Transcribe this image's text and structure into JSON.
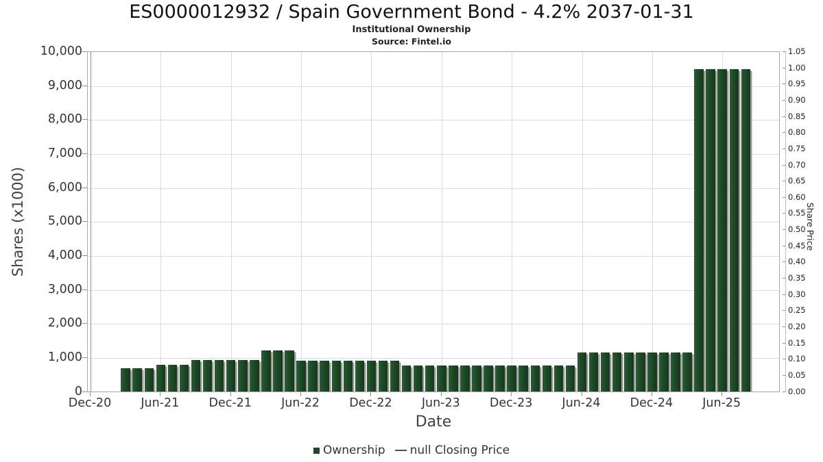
{
  "header": {
    "title": "ES0000012932 / Spain Government Bond - 4.2% 2037-01-31",
    "subtitle": "Institutional Ownership",
    "source": "Source: Fintel.io"
  },
  "colors": {
    "bar_fill": "#1d4a26",
    "bar_fill_light": "#2e5c36",
    "bar_fill_dark": "#16381c",
    "bar_shadow": "#9a9a9a",
    "gridline": "#dcdcdc",
    "plot_border": "#a6a6a6",
    "axis_spine": "#8f8f8f",
    "tick_text": "#333333",
    "right_tick_text": "#1f1f1f",
    "legend_dash": "#4d4d4d"
  },
  "chart_data": {
    "type": "bar",
    "title": "ES0000012932 / Spain Government Bond - 4.2% 2037-01-31",
    "subtitle": "Institutional Ownership",
    "source": "Source: Fintel.io",
    "xlabel": "Date",
    "ylabel_left": "Shares (x1000)",
    "ylabel_right": "Share Price",
    "ylim_left": [
      0,
      10000
    ],
    "ylim_right": [
      0,
      1.05
    ],
    "grid": true,
    "legend_position": "bottom-center",
    "x_ticks": [
      "Dec-20",
      "Jun-21",
      "Dec-21",
      "Jun-22",
      "Dec-22",
      "Jun-23",
      "Dec-23",
      "Jun-24",
      "Dec-24",
      "Jun-25"
    ],
    "y_ticks_left": [
      "0",
      "1,000",
      "2,000",
      "3,000",
      "4,000",
      "5,000",
      "6,000",
      "7,000",
      "8,000",
      "9,000",
      "10,000"
    ],
    "y_ticks_right": [
      "0.00",
      "0.05",
      "0.10",
      "0.15",
      "0.20",
      "0.25",
      "0.30",
      "0.35",
      "0.40",
      "0.45",
      "0.50",
      "0.55",
      "0.60",
      "0.65",
      "0.70",
      "0.75",
      "0.80",
      "0.85",
      "0.90",
      "0.95",
      "1.00",
      "1.05"
    ],
    "series": [
      {
        "name": "Ownership",
        "unit": "shares_x1000",
        "points": [
          {
            "month": "Mar-21",
            "shares": 700
          },
          {
            "month": "Apr-21",
            "shares": 700
          },
          {
            "month": "May-21",
            "shares": 700
          },
          {
            "month": "Jun-21",
            "shares": 800
          },
          {
            "month": "Jul-21",
            "shares": 800
          },
          {
            "month": "Aug-21",
            "shares": 800
          },
          {
            "month": "Sep-21",
            "shares": 940
          },
          {
            "month": "Oct-21",
            "shares": 940
          },
          {
            "month": "Nov-21",
            "shares": 940
          },
          {
            "month": "Dec-21",
            "shares": 940
          },
          {
            "month": "Jan-22",
            "shares": 940
          },
          {
            "month": "Feb-22",
            "shares": 940
          },
          {
            "month": "Mar-22",
            "shares": 1220
          },
          {
            "month": "Apr-22",
            "shares": 1220
          },
          {
            "month": "May-22",
            "shares": 1220
          },
          {
            "month": "Jun-22",
            "shares": 910
          },
          {
            "month": "Jul-22",
            "shares": 910
          },
          {
            "month": "Aug-22",
            "shares": 910
          },
          {
            "month": "Sep-22",
            "shares": 910
          },
          {
            "month": "Oct-22",
            "shares": 910
          },
          {
            "month": "Nov-22",
            "shares": 910
          },
          {
            "month": "Dec-22",
            "shares": 910
          },
          {
            "month": "Jan-23",
            "shares": 910
          },
          {
            "month": "Feb-23",
            "shares": 910
          },
          {
            "month": "Mar-23",
            "shares": 770
          },
          {
            "month": "Apr-23",
            "shares": 770
          },
          {
            "month": "May-23",
            "shares": 770
          },
          {
            "month": "Jun-23",
            "shares": 770
          },
          {
            "month": "Jul-23",
            "shares": 770
          },
          {
            "month": "Aug-23",
            "shares": 770
          },
          {
            "month": "Sep-23",
            "shares": 770
          },
          {
            "month": "Oct-23",
            "shares": 770
          },
          {
            "month": "Nov-23",
            "shares": 770
          },
          {
            "month": "Dec-23",
            "shares": 770
          },
          {
            "month": "Jan-24",
            "shares": 770
          },
          {
            "month": "Feb-24",
            "shares": 770
          },
          {
            "month": "Mar-24",
            "shares": 770
          },
          {
            "month": "Apr-24",
            "shares": 770
          },
          {
            "month": "May-24",
            "shares": 770
          },
          {
            "month": "Jun-24",
            "shares": 1160
          },
          {
            "month": "Jul-24",
            "shares": 1160
          },
          {
            "month": "Aug-24",
            "shares": 1160
          },
          {
            "month": "Sep-24",
            "shares": 1160
          },
          {
            "month": "Oct-24",
            "shares": 1160
          },
          {
            "month": "Nov-24",
            "shares": 1160
          },
          {
            "month": "Dec-24",
            "shares": 1160
          },
          {
            "month": "Jan-25",
            "shares": 1160
          },
          {
            "month": "Feb-25",
            "shares": 1160
          },
          {
            "month": "Mar-25",
            "shares": 1160
          },
          {
            "month": "Apr-25",
            "shares": 9500
          },
          {
            "month": "May-25",
            "shares": 9500
          },
          {
            "month": "Jun-25",
            "shares": 9500
          },
          {
            "month": "Jul-25",
            "shares": 9500
          },
          {
            "month": "Aug-25",
            "shares": 9500
          }
        ]
      },
      {
        "name": "null Closing Price",
        "unit": "share_price",
        "points": []
      }
    ],
    "legend": [
      {
        "label": "Ownership",
        "marker": "square"
      },
      {
        "label": "null Closing Price",
        "marker": "dash"
      }
    ]
  }
}
